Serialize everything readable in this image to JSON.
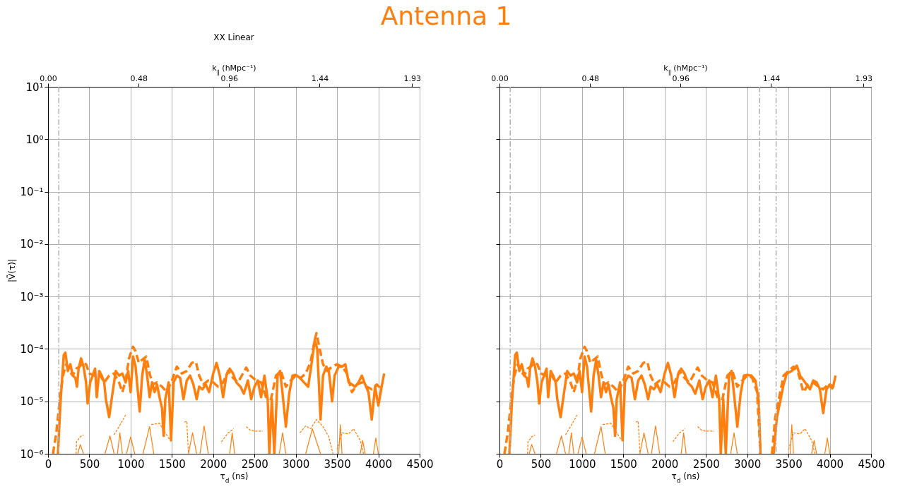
{
  "chart_data": [
    {
      "type": "line",
      "title": "Antenna 1",
      "subtitle": "XX Linear",
      "xlabel": "τ$_{d}$ (ns)",
      "ylabel": "|Ṽ(τ)|",
      "x2label": "k$_{∥}$ (hMpc⁻¹)",
      "xlim": [
        0,
        4500
      ],
      "xticks": [
        0,
        500,
        1000,
        1500,
        2000,
        2500,
        3000,
        3500,
        4000,
        4500
      ],
      "x2lim": [
        0,
        1.97
      ],
      "x2ticks": [
        {
          "value": 0,
          "label": "0.00"
        },
        0.48,
        0.96,
        1.44,
        1.93
      ],
      "ylim": [
        1e-06,
        10
      ],
      "yticks": [
        {
          "value": 1e-06,
          "label": "10⁻⁶"
        },
        {
          "value": 1e-05,
          "label": "10⁻⁵"
        },
        {
          "value": 0.0001,
          "label": "10⁻⁴"
        },
        {
          "value": 0.001,
          "label": "10⁻³"
        },
        {
          "value": 0.01,
          "label": "10⁻²"
        },
        {
          "value": 0.1,
          "label": "10⁻¹"
        },
        {
          "value": 1,
          "label": "10⁰"
        },
        {
          "value": 10,
          "label": "10¹"
        }
      ],
      "log": "y",
      "grid": true,
      "ref_lines": [
        {
          "axis": "x",
          "value": 130,
          "color": "#b0b0b0",
          "line_style": "dashdot"
        }
      ],
      "series": [
        {
          "color": "#ff7f0e",
          "line_style": "solid",
          "x": [
            120,
            150,
            190,
            210,
            240,
            270,
            300,
            330,
            350,
            370,
            400,
            430,
            460,
            480,
            510,
            540,
            570,
            590,
            620,
            650,
            680,
            700,
            740,
            780,
            820,
            860,
            900,
            940,
            970,
            1000,
            1030,
            1060,
            1090,
            1110,
            1140,
            1170,
            1200,
            1230,
            1260,
            1290,
            1320,
            1350,
            1380,
            1400,
            1420,
            1460,
            1490,
            1520,
            1560,
            1600,
            1640,
            1680,
            1720,
            1760,
            1800,
            1830,
            1870,
            1910,
            1950,
            2000,
            2040,
            2080,
            2120,
            2160,
            2200,
            2240,
            2280,
            2330,
            2370,
            2420,
            2460,
            2500,
            2540,
            2580,
            2620,
            2660,
            2680,
            2710,
            2740,
            2780,
            2810,
            2840,
            2880,
            2920,
            2960,
            3000,
            3050,
            3100,
            3150,
            3190,
            3230,
            3260,
            3300,
            3330,
            3370,
            3400,
            3440,
            3470,
            3520,
            3560,
            3600,
            3640,
            3680,
            3720,
            3760,
            3800,
            3840,
            3880,
            3920,
            3960,
            4000,
            4040,
            4070
          ],
          "values": [
            1e-06,
            9.1e-06,
            7.6e-05,
            8.5e-05,
            3.8e-05,
            5.1e-05,
            3.1e-05,
            2.8e-05,
            1.9e-05,
            4.2e-05,
            6.6e-05,
            4.6e-05,
            2.3e-05,
            9.1e-06,
            2.3e-05,
            3.1e-05,
            4.2e-05,
            1.2e-05,
            3.8e-05,
            3.1e-05,
            2.3e-05,
            1.1e-05,
            5e-06,
            1.4e-05,
            3.8e-05,
            3.1e-05,
            3.4e-05,
            2.3e-05,
            3.8e-05,
            1.5e-05,
            7.2e-05,
            4.6e-05,
            1.4e-05,
            6.4e-06,
            3.1e-05,
            6.2e-05,
            3.1e-05,
            1.2e-05,
            2.3e-05,
            1.5e-05,
            2.1e-05,
            1.2e-05,
            7.4e-06,
            2.2e-06,
            1.1e-05,
            2.3e-05,
            1.8e-06,
            2.3e-05,
            3.1e-05,
            2.8e-05,
            1.1e-05,
            2.5e-05,
            3.1e-05,
            2.1e-05,
            1.1e-05,
            1.9e-05,
            1.7e-05,
            2.1e-05,
            1.5e-05,
            3.4e-05,
            5.4e-05,
            3.1e-05,
            1.2e-05,
            3.1e-05,
            4.2e-05,
            3.4e-05,
            2.3e-05,
            1.9e-05,
            1.4e-05,
            2.5e-05,
            1.1e-05,
            1.9e-05,
            2.5e-05,
            1.2e-05,
            3.1e-05,
            1.1e-05,
            1e-06,
            1.1e-05,
            1e-06,
            3.1e-05,
            3.8e-05,
            1.4e-05,
            3.3e-06,
            1.4e-05,
            3.1e-05,
            3.2e-05,
            2.8e-05,
            2.3e-05,
            1.9e-05,
            5.1e-05,
            0.00015,
            0.0001,
            4.5e-06,
            3.1e-05,
            4.6e-05,
            3.8e-05,
            1e-05,
            3.1e-05,
            4.6e-05,
            4.6e-05,
            5.1e-05,
            2.3e-05,
            2.1e-05,
            1.9e-05,
            2.3e-05,
            3.1e-05,
            2.1e-05,
            1.5e-05,
            4.5e-06,
            1.9e-05,
            8.3e-06,
            1.9e-05,
            3.4e-05
          ]
        },
        {
          "color": "#ff7f0e",
          "line_style": "dashed",
          "x": [
            60,
            100,
            140,
            180,
            220,
            260,
            300,
            340,
            380,
            420,
            460,
            500,
            560,
            620,
            680,
            740,
            800,
            860,
            900,
            940,
            980,
            1030,
            1060,
            1100,
            1140,
            1190,
            1230,
            1270,
            1320,
            1380,
            1440,
            1500,
            1560,
            1620,
            1680,
            1740,
            1790,
            1830,
            1880,
            1940,
            2000,
            2060,
            2120,
            2180,
            2240,
            2300,
            2360,
            2400,
            2450,
            2520,
            2580,
            2640,
            2700,
            2760,
            2820,
            2880,
            2940,
            3000,
            3060,
            3120,
            3180,
            3230,
            3250,
            3290,
            3330,
            3380,
            3440,
            3500,
            3560,
            3620,
            3680,
            3740,
            3800,
            3860,
            3920,
            3980,
            4040
          ],
          "values": [
            1e-06,
            2.5e-06,
            1e-05,
            3.1e-05,
            5.1e-05,
            3.8e-05,
            3.1e-05,
            4.2e-05,
            4.6e-05,
            5.4e-05,
            5.1e-05,
            3.4e-05,
            3.1e-05,
            3.4e-05,
            2.3e-05,
            3.1e-05,
            3.4e-05,
            2.3e-05,
            1.5e-05,
            2.5e-05,
            6.6e-05,
            0.00011,
            9e-05,
            5.4e-05,
            6.2e-05,
            7.2e-05,
            3.4e-05,
            2.1e-05,
            2.3e-05,
            1.9e-05,
            1.5e-05,
            2.5e-05,
            4.6e-05,
            3.4e-05,
            3.8e-05,
            5.4e-05,
            5.7e-05,
            3.1e-05,
            2.1e-05,
            2.5e-05,
            2.3e-05,
            1.9e-05,
            2.3e-05,
            3.8e-05,
            2.8e-05,
            2.3e-05,
            3.4e-05,
            4.4e-05,
            3.1e-05,
            2.5e-05,
            2.3e-05,
            1.2e-05,
            1.1e-05,
            3.1e-05,
            3.8e-05,
            1.9e-05,
            2.5e-05,
            3.1e-05,
            2.8e-05,
            3.4e-05,
            5.7e-05,
            0.00015,
            0.0002,
            0.0001,
            5.1e-05,
            3.8e-05,
            4.6e-05,
            5.1e-05,
            4.6e-05,
            3.4e-05,
            1.5e-05,
            2.1e-05,
            2.3e-05,
            1.9e-05,
            1.7e-05,
            2.1e-05,
            1.7e-05
          ]
        },
        {
          "color": "#ff7f0e",
          "line_style": "solid",
          "x": [
            360,
            390,
            430,
            440,
            690,
            750,
            800,
            810,
            840,
            870,
            900,
            910,
            950,
            1000,
            1050,
            1060,
            1150,
            1230,
            1280,
            1290,
            1700,
            1750,
            1800,
            1810,
            1840,
            1890,
            1940,
            1950,
            2200,
            2230,
            2260,
            2270,
            2800,
            2840,
            2880,
            2890,
            3120,
            3200,
            3300,
            3310,
            3520,
            3540,
            3560,
            3570,
            3780,
            3810,
            3840,
            3850,
            3940,
            3970,
            4000
          ],
          "values": [
            1e-06,
            1.5e-06,
            1e-06,
            null,
            1e-06,
            2.2e-06,
            1e-06,
            null,
            1e-06,
            2.5e-06,
            1e-06,
            null,
            1e-06,
            2.1e-06,
            1e-06,
            null,
            1e-06,
            3.3e-06,
            1e-06,
            null,
            1e-06,
            2.5e-06,
            1e-06,
            null,
            1e-06,
            3.4e-06,
            1e-06,
            null,
            1e-06,
            2.5e-06,
            1e-06,
            null,
            1e-06,
            2.5e-06,
            1e-06,
            null,
            1e-06,
            3e-06,
            1e-06,
            null,
            1e-06,
            3.6e-06,
            1e-06,
            null,
            1e-06,
            1.8e-06,
            1e-06,
            null,
            1e-06,
            2e-06,
            1e-06
          ]
        },
        {
          "color": "#ff7f0e",
          "line_style": "dashed",
          "x": [
            340,
            345,
            390,
            430,
            440,
            800,
            870,
            940,
            950,
            1250,
            1350,
            1420,
            1480,
            1490,
            1650,
            1680,
            1700,
            1710,
            2100,
            2180,
            2250,
            2260,
            2400,
            2450,
            2500,
            2600,
            2610,
            3050,
            3120,
            3180,
            3250,
            3330,
            3400,
            3450,
            3460,
            3500,
            3560,
            3640,
            3700,
            3780,
            3820
          ],
          "values": [
            1e-06,
            1.7e-06,
            2.1e-06,
            2.3e-06,
            null,
            2.3e-06,
            3.5e-06,
            5.5e-06,
            null,
            3.6e-06,
            3.8e-06,
            2.5e-06,
            1.8e-06,
            null,
            4e-06,
            4.2e-06,
            1e-06,
            null,
            1.7e-06,
            2.5e-06,
            3e-06,
            null,
            3.3e-06,
            2.8e-06,
            2.7e-06,
            2.7e-06,
            null,
            2.5e-06,
            3.4e-06,
            3e-06,
            4.5e-06,
            3.3e-06,
            2.1e-06,
            1e-06,
            null,
            1.2e-06,
            2.5e-06,
            2.4e-06,
            3e-06,
            1.8e-06,
            1e-06
          ]
        }
      ]
    },
    {
      "type": "line",
      "xlabel": "τ$_{d}$ (ns)",
      "x2label": "k$_{∥}$ (hMpc⁻¹)",
      "xlim": [
        0,
        4500
      ],
      "xticks": [
        0,
        500,
        1000,
        1500,
        2000,
        2500,
        3000,
        3500,
        4000,
        4500
      ],
      "x2lim": [
        0,
        1.97
      ],
      "x2ticks": [
        {
          "value": 0,
          "label": "0.00"
        },
        0.48,
        0.96,
        1.44,
        1.93
      ],
      "ylim": [
        1e-06,
        10
      ],
      "yticks": [
        1e-06,
        1e-05,
        0.0001,
        0.001,
        0.01,
        0.1,
        1,
        10
      ],
      "log": "y",
      "grid": true,
      "tick_labels": "x",
      "ref_lines": [
        {
          "axis": "x",
          "value": 130,
          "color": "#b0b0b0",
          "line_style": "dashdot"
        },
        {
          "axis": "x",
          "value": 3150,
          "color": "#b0b0b0",
          "line_style": "dashdot"
        },
        {
          "axis": "x",
          "value": 3350,
          "color": "#b0b0b0",
          "line_style": "dashdot"
        }
      ],
      "series": [
        {
          "color": "#ff7f0e",
          "line_style": "solid",
          "x": [
            120,
            150,
            190,
            210,
            240,
            270,
            300,
            330,
            350,
            370,
            400,
            430,
            460,
            480,
            510,
            540,
            570,
            590,
            620,
            650,
            680,
            700,
            740,
            780,
            820,
            860,
            900,
            940,
            970,
            1000,
            1030,
            1060,
            1090,
            1110,
            1140,
            1170,
            1200,
            1230,
            1260,
            1290,
            1320,
            1350,
            1380,
            1400,
            1420,
            1460,
            1490,
            1520,
            1560,
            1600,
            1640,
            1680,
            1720,
            1760,
            1800,
            1830,
            1870,
            1910,
            1950,
            2000,
            2040,
            2080,
            2120,
            2160,
            2200,
            2240,
            2280,
            2330,
            2370,
            2420,
            2460,
            2500,
            2540,
            2580,
            2620,
            2660,
            2680,
            2710,
            2740,
            2780,
            2810,
            2840,
            2880,
            2920,
            2960,
            3000,
            3050,
            3100,
            3140,
            3160,
            3170,
            3320,
            3360,
            3400,
            3440,
            3480,
            3540,
            3600,
            3640,
            3700,
            3760,
            3800,
            3840,
            3880,
            3920,
            3960,
            4000,
            4040,
            4070
          ],
          "values": [
            1e-06,
            9.1e-06,
            7.6e-05,
            8.5e-05,
            3.8e-05,
            5.1e-05,
            3.1e-05,
            2.8e-05,
            1.9e-05,
            4.2e-05,
            6.6e-05,
            4.6e-05,
            2.3e-05,
            9.1e-06,
            2.3e-05,
            3.1e-05,
            4.2e-05,
            1.2e-05,
            3.8e-05,
            3.1e-05,
            2.3e-05,
            1.1e-05,
            5e-06,
            1.4e-05,
            3.8e-05,
            3.1e-05,
            3.4e-05,
            2.3e-05,
            3.8e-05,
            1.5e-05,
            7.2e-05,
            4.6e-05,
            1.4e-05,
            6.4e-06,
            3.1e-05,
            6.2e-05,
            3.1e-05,
            1.2e-05,
            2.3e-05,
            1.5e-05,
            2.1e-05,
            1.2e-05,
            7.4e-06,
            2.2e-06,
            1.1e-05,
            2.3e-05,
            1.8e-06,
            2.3e-05,
            3.1e-05,
            2.8e-05,
            1.1e-05,
            2.5e-05,
            3.1e-05,
            2.1e-05,
            1.1e-05,
            1.9e-05,
            1.7e-05,
            2.1e-05,
            1.5e-05,
            3.4e-05,
            5.4e-05,
            3.1e-05,
            1.2e-05,
            3.1e-05,
            4.2e-05,
            3.4e-05,
            2.3e-05,
            1.9e-05,
            1.4e-05,
            2.5e-05,
            1.1e-05,
            1.9e-05,
            2.5e-05,
            1.2e-05,
            3.1e-05,
            1.1e-05,
            1e-06,
            1.1e-05,
            1e-06,
            3.1e-05,
            3.8e-05,
            1.4e-05,
            3.3e-06,
            1.4e-05,
            3.1e-05,
            3.2e-05,
            3.1e-05,
            2.5e-05,
            1e-05,
            1e-06,
            null,
            1e-06,
            5e-06,
            1e-05,
            2.1e-05,
            3.4e-05,
            3.8e-05,
            4.8e-05,
            3.1e-05,
            2.3e-05,
            1.7e-05,
            2.5e-05,
            2.3e-05,
            1.7e-05,
            6e-06,
            1.7e-05,
            2.1e-05,
            1.9e-05,
            3.1e-05
          ]
        },
        {
          "color": "#ff7f0e",
          "line_style": "dashed",
          "x": [
            60,
            100,
            140,
            180,
            220,
            260,
            300,
            340,
            380,
            420,
            460,
            500,
            560,
            620,
            680,
            740,
            800,
            860,
            900,
            940,
            980,
            1030,
            1060,
            1100,
            1140,
            1190,
            1230,
            1270,
            1320,
            1380,
            1440,
            1500,
            1560,
            1620,
            1680,
            1740,
            1790,
            1830,
            1880,
            1940,
            2000,
            2060,
            2120,
            2180,
            2240,
            2300,
            2360,
            2400,
            2450,
            2520,
            2580,
            2640,
            2700,
            2760,
            2820,
            2880,
            2940,
            3000,
            3060,
            3120,
            3160,
            3170,
            3300,
            3340,
            3400,
            3440,
            3500,
            3560,
            3620,
            3680,
            3740,
            3800,
            3860,
            3920,
            3980,
            4040
          ],
          "values": [
            1e-06,
            2.5e-06,
            1e-05,
            3.1e-05,
            5.1e-05,
            3.8e-05,
            3.1e-05,
            4.2e-05,
            4.6e-05,
            5.4e-05,
            5.1e-05,
            3.4e-05,
            3.1e-05,
            3.4e-05,
            2.3e-05,
            3.1e-05,
            3.4e-05,
            2.3e-05,
            1.5e-05,
            2.5e-05,
            6.6e-05,
            0.00011,
            9e-05,
            5.4e-05,
            6.2e-05,
            7.2e-05,
            3.4e-05,
            2.1e-05,
            2.3e-05,
            1.9e-05,
            1.5e-05,
            2.5e-05,
            4.6e-05,
            3.4e-05,
            3.8e-05,
            5.4e-05,
            5.7e-05,
            3.1e-05,
            2.1e-05,
            2.5e-05,
            2.3e-05,
            1.9e-05,
            2.3e-05,
            3.8e-05,
            2.8e-05,
            2.3e-05,
            3.4e-05,
            4.4e-05,
            3.1e-05,
            2.5e-05,
            2.3e-05,
            1.2e-05,
            1.1e-05,
            3.1e-05,
            3.8e-05,
            1.9e-05,
            2.5e-05,
            3.1e-05,
            2.8e-05,
            1.5e-05,
            1e-06,
            null,
            1e-06,
            5e-06,
            1.5e-05,
            3.1e-05,
            3.8e-05,
            4.6e-05,
            3.4e-05,
            1.5e-05,
            2.1e-05,
            2.3e-05,
            1.9e-05,
            1.7e-05,
            2.1e-05,
            1.7e-05
          ]
        },
        {
          "color": "#ff7f0e",
          "line_style": "solid",
          "x": [
            360,
            390,
            430,
            440,
            690,
            750,
            800,
            810,
            840,
            870,
            900,
            910,
            950,
            1000,
            1050,
            1060,
            1150,
            1230,
            1280,
            1290,
            1700,
            1750,
            1800,
            1810,
            1840,
            1890,
            1940,
            1950,
            2200,
            2230,
            2260,
            2270,
            2800,
            2840,
            2880,
            2890,
            3520,
            3540,
            3560,
            3570,
            3780,
            3810,
            3840,
            3850,
            3940,
            3970,
            4000
          ],
          "values": [
            1e-06,
            1.5e-06,
            1e-06,
            null,
            1e-06,
            2.2e-06,
            1e-06,
            null,
            1e-06,
            2.5e-06,
            1e-06,
            null,
            1e-06,
            2.1e-06,
            1e-06,
            null,
            1e-06,
            3.3e-06,
            1e-06,
            null,
            1e-06,
            2.5e-06,
            1e-06,
            null,
            1e-06,
            3.4e-06,
            1e-06,
            null,
            1e-06,
            2.5e-06,
            1e-06,
            null,
            1e-06,
            2.5e-06,
            1e-06,
            null,
            1e-06,
            3.6e-06,
            1e-06,
            null,
            1e-06,
            1.8e-06,
            1e-06,
            null,
            1e-06,
            2e-06,
            1e-06
          ]
        },
        {
          "color": "#ff7f0e",
          "line_style": "dashed",
          "x": [
            340,
            345,
            390,
            430,
            440,
            800,
            870,
            940,
            950,
            1250,
            1350,
            1420,
            1480,
            1490,
            1650,
            1680,
            1700,
            1710,
            2100,
            2180,
            2250,
            2260,
            2400,
            2450,
            2500,
            2600,
            2610,
            3500,
            3560,
            3640,
            3700,
            3780,
            3820
          ],
          "values": [
            1e-06,
            1.7e-06,
            2.1e-06,
            2.3e-06,
            null,
            2.3e-06,
            3.5e-06,
            5.5e-06,
            null,
            3.6e-06,
            3.8e-06,
            2.5e-06,
            1.8e-06,
            null,
            4e-06,
            4.2e-06,
            1e-06,
            null,
            1.7e-06,
            2.5e-06,
            3e-06,
            null,
            3.3e-06,
            2.8e-06,
            2.7e-06,
            2.7e-06,
            null,
            1.2e-06,
            2.5e-06,
            2.4e-06,
            3e-06,
            1.8e-06,
            1e-06
          ]
        }
      ]
    }
  ]
}
